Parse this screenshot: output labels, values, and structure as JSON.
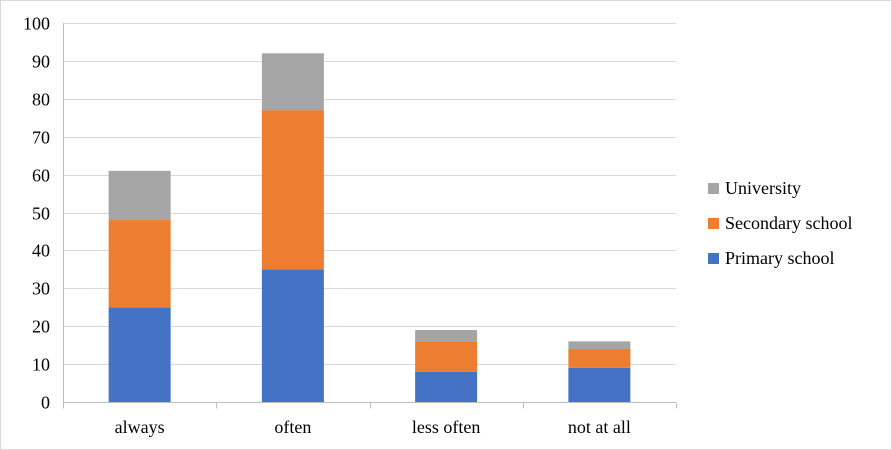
{
  "chart_data": {
    "type": "bar",
    "stacked": true,
    "title": "",
    "xlabel": "",
    "ylabel": "",
    "categories": [
      "always",
      "often",
      "less often",
      "not at all"
    ],
    "series": [
      {
        "name": "Primary school",
        "values": [
          25,
          35,
          8,
          9
        ],
        "color": "#4472c4"
      },
      {
        "name": "Secondary school",
        "values": [
          23,
          42,
          8,
          5
        ],
        "color": "#ed7d31"
      },
      {
        "name": "University",
        "values": [
          13,
          15,
          3,
          2
        ],
        "color": "#a5a5a5"
      }
    ],
    "ylim": [
      0,
      100
    ],
    "yticks": [
      0,
      10,
      20,
      30,
      40,
      50,
      60,
      70,
      80,
      90,
      100
    ],
    "grid": true,
    "legend": {
      "placement": "right",
      "order": [
        "University",
        "Secondary school",
        "Primary school"
      ]
    },
    "colors": {
      "grid": "#d9d9d9",
      "axis": "#bfbfbf"
    }
  }
}
